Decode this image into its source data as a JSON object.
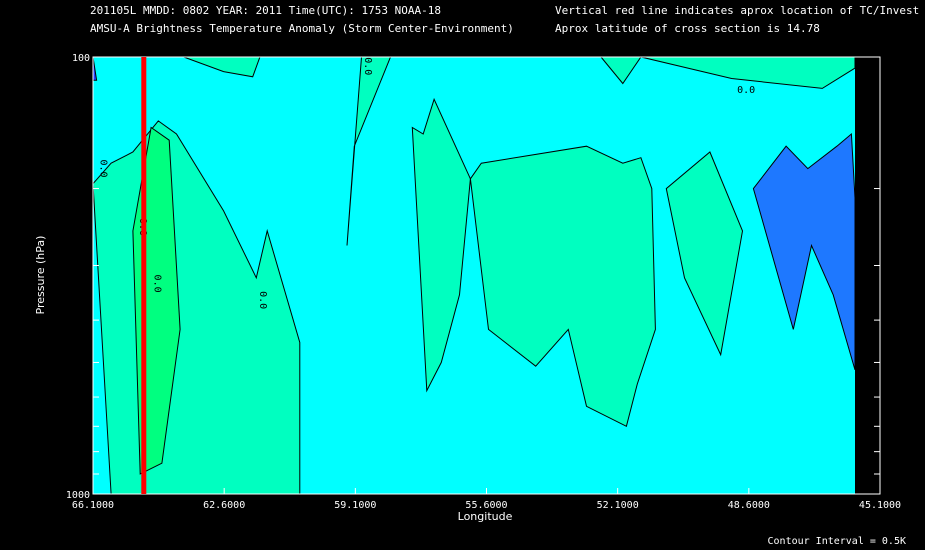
{
  "header": {
    "line1": "201105L  MMDD: 0802 YEAR: 2011 Time(UTC): 1753 NOAA-18",
    "line2": "AMSU-A Brightness Temperature Anomaly (Storm Center-Environment)",
    "right1": "Vertical red line indicates aprox location of TC/Invest",
    "right2": "Aprox latitude of cross section is 14.78"
  },
  "footer": {
    "contour_interval": "Contour Interval = 0.5K"
  },
  "colors": {
    "background": "#000000",
    "zero_band": "#00ffff",
    "positive_band": "#00ffc0",
    "positive_band_2": "#00ff80",
    "negative_band": "#1e78ff",
    "negative_band_2": "#2040ff",
    "storm_line": "#ff0000",
    "contour": "#000000"
  },
  "chart_data": {
    "type": "contour",
    "xlabel": "Longitude",
    "ylabel": "Pressure (hPa)",
    "x_ticks": [
      "66.1000",
      "62.6000",
      "59.1000",
      "55.6000",
      "52.1000",
      "48.6000",
      "45.1000"
    ],
    "x_tick_values": [
      66.1,
      62.6,
      59.1,
      55.6,
      52.1,
      48.6,
      45.1
    ],
    "y_ticks": [
      "100",
      "1000"
    ],
    "y_tick_values": [
      100,
      1000
    ],
    "xlim": [
      66.1,
      45.1
    ],
    "ylim": [
      1000,
      100
    ],
    "y_scale": "log",
    "contour_interval": 0.5,
    "storm_longitude": 64.7,
    "contour_labels": [
      "0.0",
      "0.0",
      "0.0",
      "0.0",
      "0.0",
      "0.0"
    ],
    "regions": [
      {
        "level": "0.5",
        "color": "#00ffc0",
        "lon": [
          66.1,
          65.6,
          65.0,
          64.3,
          63.8,
          62.5,
          61.6,
          61.3,
          60.4,
          60.4,
          65.6,
          66.1
        ],
        "p": [
          195,
          175,
          165,
          140,
          150,
          225,
          320,
          250,
          450,
          1000,
          1000,
          195
        ]
      },
      {
        "level": "0.5",
        "color": "#00ffc0",
        "lon": [
          63.6,
          62.5,
          61.7,
          61.5,
          61.0,
          63.6
        ],
        "p": [
          100,
          108,
          111,
          100,
          100,
          100
        ]
      },
      {
        "level": "0.5",
        "color": "#00ffc0",
        "lon": [
          59.1,
          58.9,
          57.9,
          58.7,
          59.1
        ],
        "p": [
          270,
          160,
          100,
          100,
          270
        ]
      },
      {
        "level": "0.5",
        "color": "#00ffc0",
        "lon": [
          56.9,
          56.5,
          56.0,
          55.7,
          56.7,
          57.0,
          57.3,
          56.9
        ],
        "p": [
          580,
          500,
          350,
          190,
          125,
          150,
          145,
          580
        ]
      },
      {
        "level": "0.5",
        "color": "#00ffc0",
        "lon": [
          55.7,
          55.2,
          53.9,
          53.0,
          52.5,
          51.4,
          51.1,
          50.6,
          50.7,
          51.0,
          51.5,
          52.5,
          55.4,
          55.7
        ],
        "p": [
          190,
          420,
          510,
          420,
          630,
          700,
          560,
          420,
          200,
          170,
          175,
          160,
          175,
          190
        ]
      },
      {
        "level": "0.5",
        "color": "#00ffc0",
        "lon": [
          50.3,
          49.8,
          48.8,
          48.2,
          49.1,
          50.3
        ],
        "p": [
          200,
          320,
          480,
          250,
          165,
          200
        ]
      },
      {
        "level": "0.5",
        "color": "#00ffc0",
        "lon": [
          52.1,
          51.5,
          51.0,
          48.5,
          46.0,
          45.1,
          45.1,
          52.1
        ],
        "p": [
          100,
          115,
          100,
          112,
          118,
          106,
          100,
          100
        ]
      },
      {
        "level": "1.0",
        "color": "#00ff80",
        "lon": [
          65.0,
          64.5,
          64.0,
          63.7,
          64.2,
          64.8,
          65.0
        ],
        "p": [
          250,
          145,
          155,
          420,
          850,
          900,
          250
        ]
      },
      {
        "level": "-0.5",
        "color": "#1e78ff",
        "lon": [
          47.9,
          47.0,
          46.4,
          45.6,
          45.2,
          45.1,
          45.1,
          45.7,
          46.3,
          46.8,
          47.9
        ],
        "p": [
          200,
          160,
          180,
          160,
          150,
          210,
          520,
          350,
          270,
          420,
          200
        ]
      },
      {
        "level": "-0.5",
        "color": "#2040ff",
        "lon": [
          66.1,
          66.0,
          66.1
        ],
        "p": [
          100,
          113,
          113
        ]
      }
    ]
  }
}
